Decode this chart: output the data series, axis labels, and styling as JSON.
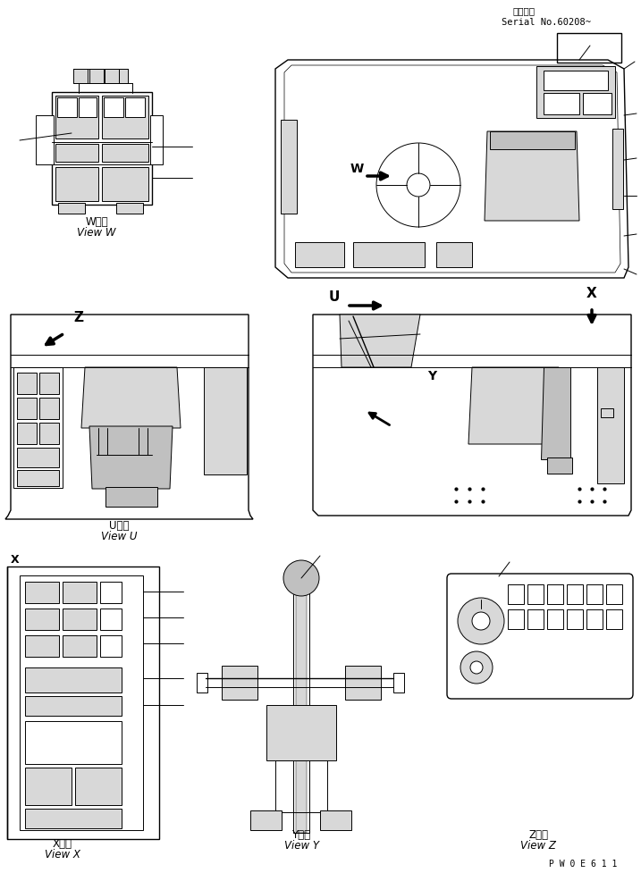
{
  "bg_color": "#ffffff",
  "black": "#000000",
  "gray_light": "#d8d8d8",
  "gray_med": "#c0c0c0",
  "serial_line1": "適用号機",
  "serial_line2": "Serial No.60208~",
  "bottom_code": "P W 0 E 6 1 1",
  "view_W_jp": "W　視",
  "view_W_en": "View W",
  "view_U_jp": "U　視",
  "view_U_en": "View U",
  "view_X_jp": "X　視",
  "view_X_en": "View X",
  "view_Y_jp": "Y　視",
  "view_Y_en": "View Y",
  "view_Z_jp": "Z　視",
  "view_Z_en": "View Z"
}
